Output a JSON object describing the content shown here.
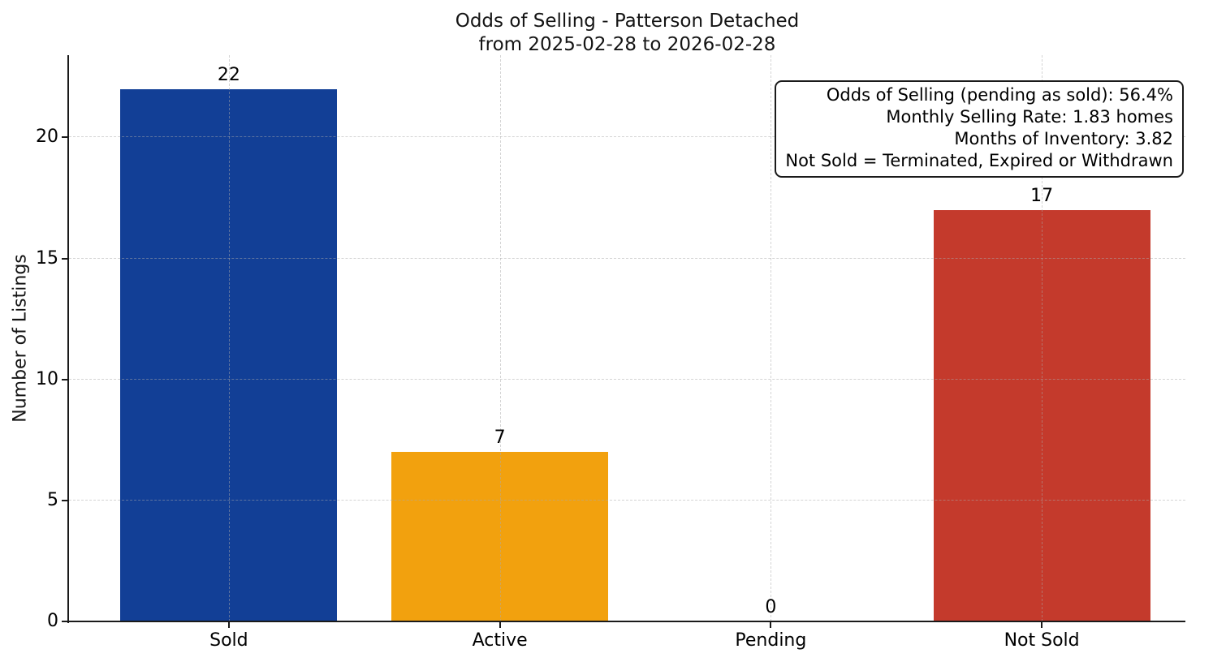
{
  "chart_data": {
    "type": "bar",
    "title": "Odds of Selling - Patterson Detached",
    "subtitle": "from 2025-02-28 to 2026-02-28",
    "xlabel": "",
    "ylabel": "Number of Listings",
    "categories": [
      "Sold",
      "Active",
      "Pending",
      "Not Sold"
    ],
    "values": [
      22,
      7,
      0,
      17
    ],
    "bar_value_labels": [
      "22",
      "7",
      "0",
      "17"
    ],
    "bar_colors": [
      "#123f96",
      "#f2a10e",
      null,
      "#c43a2c"
    ],
    "bar_width": 0.8,
    "yticks": [
      0,
      5,
      10,
      15,
      20
    ],
    "ylim": [
      0,
      23.4
    ],
    "xlim": [
      -0.59,
      3.53
    ],
    "grid": {
      "visible": true,
      "style": "dashed",
      "over_bars": true
    },
    "legend": "none",
    "annotation": {
      "position": "top-right",
      "lines": [
        "Odds of Selling (pending as sold): 56.4%",
        "Monthly Selling Rate: 1.83 homes",
        "Months of Inventory: 3.82",
        "Not Sold = Terminated, Expired or Withdrawn"
      ]
    }
  },
  "colors": {
    "bar_sold": "#123f96",
    "bar_active": "#f2a10e",
    "bar_not_sold": "#c43a2c",
    "axis": "#1a1a1a",
    "grid": "#d9d9d9",
    "background": "#ffffff",
    "text": "#000000"
  }
}
